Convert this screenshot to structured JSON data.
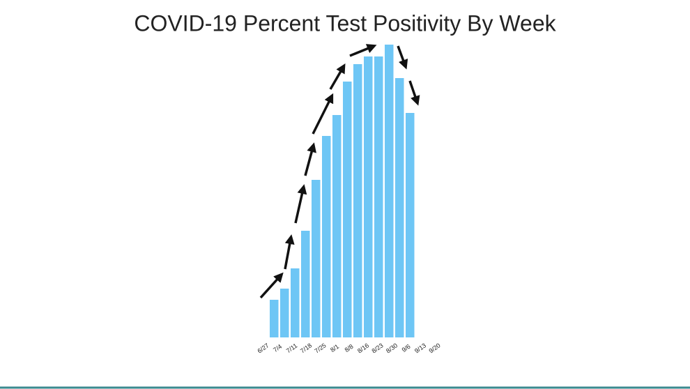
{
  "chart_data": {
    "type": "bar",
    "title": "COVID-19 Percent Test Positivity By Week",
    "categories": [
      "6/27",
      "7/4",
      "7/11",
      "7/18",
      "7/25",
      "8/1",
      "8/8",
      "8/16",
      "8/23",
      "8/30",
      "9/6",
      "9/13",
      "9/20",
      null
    ],
    "values": [
      54,
      70,
      99,
      153,
      226,
      289,
      319,
      367,
      392,
      403,
      403,
      420,
      372,
      322
    ],
    "color": "#6ec6f5",
    "ylim": [
      0,
      420
    ]
  }
}
